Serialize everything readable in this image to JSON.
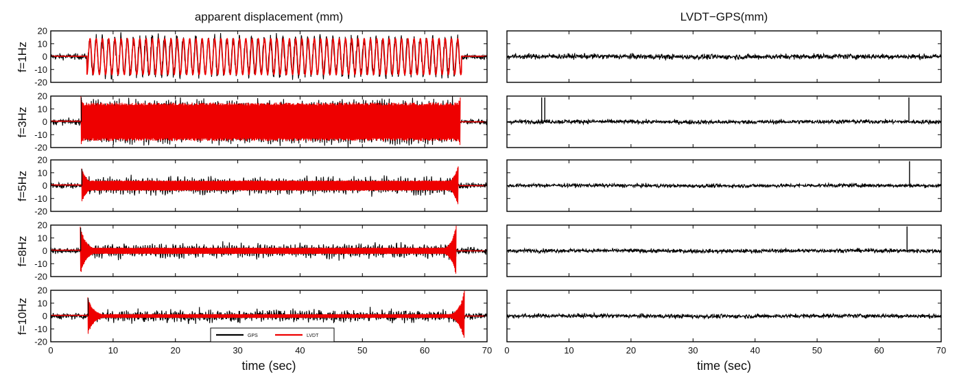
{
  "chart_data": {
    "type": "line",
    "x_unit_label": "time (sec)",
    "xlim": [
      0,
      70
    ],
    "ylim": [
      -20,
      20
    ],
    "x_ticks": [
      0,
      10,
      20,
      30,
      40,
      50,
      60,
      70
    ],
    "y_ticks": [
      -20,
      -10,
      0,
      10,
      20
    ],
    "grid": false,
    "columns": [
      {
        "title": "apparent displacement (mm)",
        "xlabel": "time (sec)",
        "show_yticks": true
      },
      {
        "title": "LVDT−GPS(mm)",
        "xlabel": "time (sec)",
        "show_yticks": false
      }
    ],
    "legend": {
      "placement": "bottom-left of lowest left panel",
      "entries": [
        {
          "name": "GPS",
          "color": "#000000"
        },
        {
          "name": "LVDT",
          "color": "#ee0000"
        }
      ]
    },
    "series_colors": {
      "GPS": "#000000",
      "LVDT": "#ee0000",
      "LVDT-GPS": "#000000"
    },
    "rows": [
      {
        "label": "f=1Hz",
        "frequency_hz": 1,
        "excitation_start_s": 5.8,
        "excitation_end_s": 65.9,
        "lvdt_amplitude_mm": 14,
        "gps_noise_mm": 2.5,
        "onset_spike_mm": 0,
        "end_spike_mm": -17,
        "difference_noise_mm": 2.0,
        "difference_spikes": []
      },
      {
        "label": "f=3Hz",
        "frequency_hz": 3,
        "excitation_start_s": 4.9,
        "excitation_end_s": 65.6,
        "lvdt_amplitude_mm": 15,
        "gps_noise_mm": 2.5,
        "onset_spike_mm": 19,
        "end_spike_mm": -19,
        "difference_noise_mm": 1.6,
        "difference_spikes": [
          {
            "t": 5.6,
            "value": 19
          },
          {
            "t": 6.1,
            "value": 19
          },
          {
            "t": 64.8,
            "value": 19
          }
        ]
      },
      {
        "label": "f=5Hz",
        "frequency_hz": 5,
        "excitation_start_s": 5.0,
        "excitation_end_s": 65.3,
        "lvdt_amplitude_mm": 4,
        "gps_noise_mm": 2.5,
        "onset_spike_mm": 13,
        "end_spike_mm": 16,
        "difference_noise_mm": 1.4,
        "difference_spikes": [
          {
            "t": 64.9,
            "value": 19
          }
        ]
      },
      {
        "label": "f=8Hz",
        "frequency_hz": 8,
        "excitation_start_s": 4.8,
        "excitation_end_s": 65.0,
        "lvdt_amplitude_mm": 2.5,
        "gps_noise_mm": 2.5,
        "onset_spike_mm": 18,
        "end_spike_mm": -19,
        "difference_noise_mm": 1.5,
        "difference_spikes": [
          {
            "t": 64.5,
            "value": 19
          }
        ]
      },
      {
        "label": "f=10Hz",
        "frequency_hz": 10,
        "excitation_start_s": 6.0,
        "excitation_end_s": 66.3,
        "lvdt_amplitude_mm": 1.5,
        "gps_noise_mm": 2.5,
        "onset_spike_mm": 14,
        "end_spike_mm": -19,
        "difference_noise_mm": 1.6,
        "difference_spikes": []
      }
    ]
  }
}
